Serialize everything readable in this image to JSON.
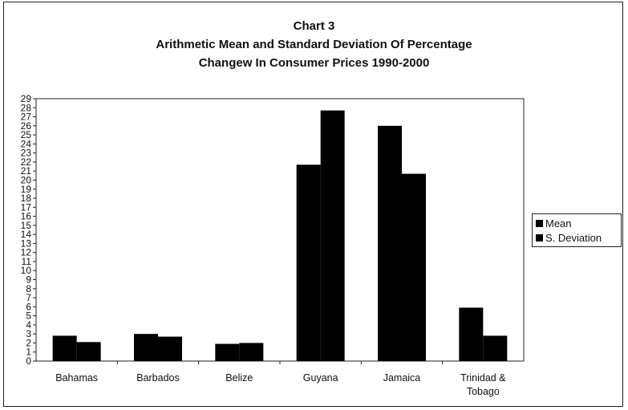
{
  "chart_data": {
    "type": "bar",
    "title_lines": [
      "Chart 3",
      "Arithmetic Mean and Standard Deviation Of Percentage",
      "Changew In Consumer Prices 1990-2000"
    ],
    "categories": [
      "Bahamas",
      "Barbados",
      "Belize",
      "Guyana",
      "Jamaica",
      "Trinidad & Tobago"
    ],
    "category_label_lines": [
      [
        "Bahamas"
      ],
      [
        "Barbados"
      ],
      [
        "Belize"
      ],
      [
        "Guyana"
      ],
      [
        "Jamaica"
      ],
      [
        "Trinidad &",
        "Tobago"
      ]
    ],
    "series": [
      {
        "name": "Mean",
        "values": [
          2.8,
          3.0,
          1.9,
          21.7,
          26.0,
          5.9
        ]
      },
      {
        "name": "S. Deviation",
        "values": [
          2.1,
          2.7,
          2.0,
          27.7,
          20.7,
          2.8
        ]
      }
    ],
    "ylim": [
      0,
      29
    ],
    "yticks": [
      "0",
      "1",
      "2",
      "3",
      "4",
      "5",
      "6",
      "7",
      "8",
      "9",
      "10",
      "11",
      "12",
      "13",
      "14",
      "15",
      "16",
      "17",
      "18",
      "19",
      "20",
      "21",
      "22",
      "23",
      "24",
      "25",
      "26",
      "27",
      "28",
      "29"
    ],
    "xlabel": "",
    "ylabel": "",
    "grid": false,
    "legend_position": "right",
    "colors": {
      "bars": "#000000",
      "axis": "#222222",
      "background": "#ffffff"
    }
  }
}
